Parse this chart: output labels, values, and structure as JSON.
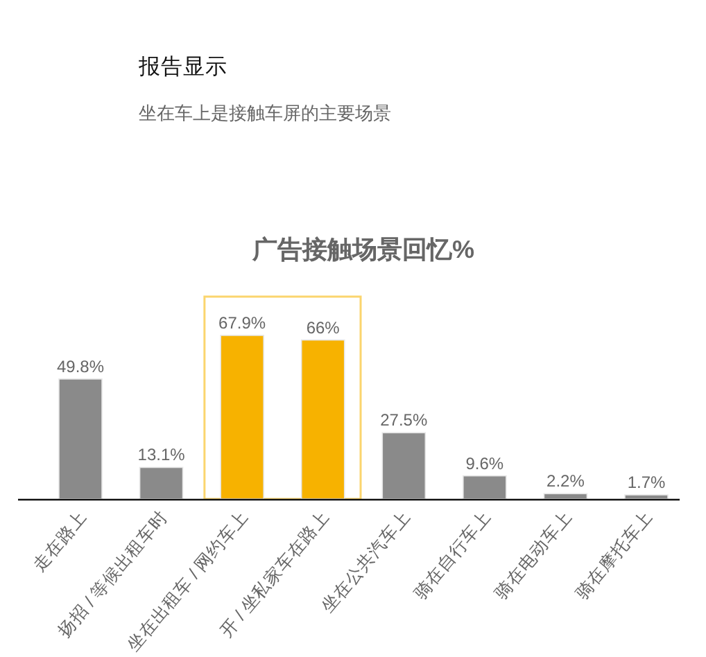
{
  "chart_data": {
    "type": "bar",
    "title": "广告接触场景回忆%",
    "annotations": [
      "报告显示",
      "坐在车上是接触车屏的主要场景"
    ],
    "categories": [
      "走在路上",
      "扬招 / 等候出租车时",
      "坐在出租车 / 网约车上",
      "开 / 坐私家车在路上",
      "坐在公共汽车上",
      "骑在自行车上",
      "骑在电动车上",
      "骑在摩托车上"
    ],
    "values": [
      49.8,
      13.1,
      67.9,
      66,
      27.5,
      9.6,
      2.2,
      1.7
    ],
    "colors": [
      "#8a8a8a",
      "#8a8a8a",
      "#f7b200",
      "#f7b200",
      "#8a8a8a",
      "#8a8a8a",
      "#8a8a8a",
      "#8a8a8a"
    ],
    "value_labels": [
      "49.8%",
      "13.1%",
      "67.9%",
      "66%",
      "27.5%",
      "9.6%",
      "2.2%",
      "1.7%"
    ]
  }
}
